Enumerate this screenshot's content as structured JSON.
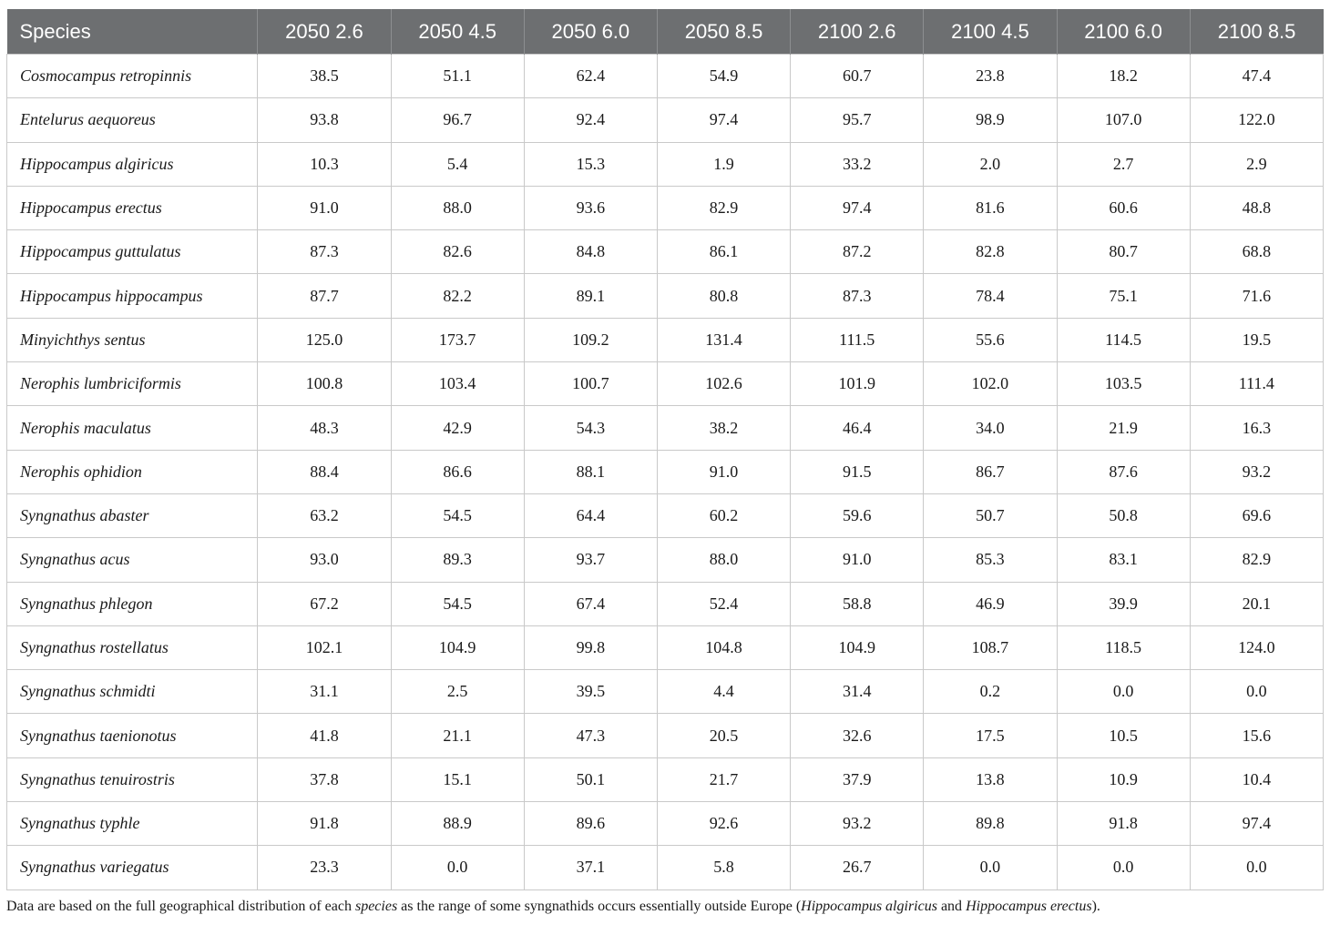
{
  "table": {
    "headers": [
      "Species",
      "2050 2.6",
      "2050 4.5",
      "2050 6.0",
      "2050 8.5",
      "2100 2.6",
      "2100 4.5",
      "2100 6.0",
      "2100 8.5"
    ],
    "rows": [
      {
        "species": "Cosmocampus retropinnis",
        "values": [
          "38.5",
          "51.1",
          "62.4",
          "54.9",
          "60.7",
          "23.8",
          "18.2",
          "47.4"
        ]
      },
      {
        "species": "Entelurus aequoreus",
        "values": [
          "93.8",
          "96.7",
          "92.4",
          "97.4",
          "95.7",
          "98.9",
          "107.0",
          "122.0"
        ]
      },
      {
        "species": "Hippocampus algiricus",
        "values": [
          "10.3",
          "5.4",
          "15.3",
          "1.9",
          "33.2",
          "2.0",
          "2.7",
          "2.9"
        ]
      },
      {
        "species": "Hippocampus erectus",
        "values": [
          "91.0",
          "88.0",
          "93.6",
          "82.9",
          "97.4",
          "81.6",
          "60.6",
          "48.8"
        ]
      },
      {
        "species": "Hippocampus guttulatus",
        "values": [
          "87.3",
          "82.6",
          "84.8",
          "86.1",
          "87.2",
          "82.8",
          "80.7",
          "68.8"
        ]
      },
      {
        "species": "Hippocampus hippocampus",
        "values": [
          "87.7",
          "82.2",
          "89.1",
          "80.8",
          "87.3",
          "78.4",
          "75.1",
          "71.6"
        ]
      },
      {
        "species": "Minyichthys sentus",
        "values": [
          "125.0",
          "173.7",
          "109.2",
          "131.4",
          "111.5",
          "55.6",
          "114.5",
          "19.5"
        ]
      },
      {
        "species": "Nerophis lumbriciformis",
        "values": [
          "100.8",
          "103.4",
          "100.7",
          "102.6",
          "101.9",
          "102.0",
          "103.5",
          "111.4"
        ]
      },
      {
        "species": "Nerophis maculatus",
        "values": [
          "48.3",
          "42.9",
          "54.3",
          "38.2",
          "46.4",
          "34.0",
          "21.9",
          "16.3"
        ]
      },
      {
        "species": "Nerophis ophidion",
        "values": [
          "88.4",
          "86.6",
          "88.1",
          "91.0",
          "91.5",
          "86.7",
          "87.6",
          "93.2"
        ]
      },
      {
        "species": "Syngnathus abaster",
        "values": [
          "63.2",
          "54.5",
          "64.4",
          "60.2",
          "59.6",
          "50.7",
          "50.8",
          "69.6"
        ]
      },
      {
        "species": "Syngnathus acus",
        "values": [
          "93.0",
          "89.3",
          "93.7",
          "88.0",
          "91.0",
          "85.3",
          "83.1",
          "82.9"
        ]
      },
      {
        "species": "Syngnathus phlegon",
        "values": [
          "67.2",
          "54.5",
          "67.4",
          "52.4",
          "58.8",
          "46.9",
          "39.9",
          "20.1"
        ]
      },
      {
        "species": "Syngnathus rostellatus",
        "values": [
          "102.1",
          "104.9",
          "99.8",
          "104.8",
          "104.9",
          "108.7",
          "118.5",
          "124.0"
        ]
      },
      {
        "species": "Syngnathus schmidti",
        "values": [
          "31.1",
          "2.5",
          "39.5",
          "4.4",
          "31.4",
          "0.2",
          "0.0",
          "0.0"
        ]
      },
      {
        "species": "Syngnathus taenionotus",
        "values": [
          "41.8",
          "21.1",
          "47.3",
          "20.5",
          "32.6",
          "17.5",
          "10.5",
          "15.6"
        ]
      },
      {
        "species": "Syngnathus tenuirostris",
        "values": [
          "37.8",
          "15.1",
          "50.1",
          "21.7",
          "37.9",
          "13.8",
          "10.9",
          "10.4"
        ]
      },
      {
        "species": "Syngnathus typhle",
        "values": [
          "91.8",
          "88.9",
          "89.6",
          "92.6",
          "93.2",
          "89.8",
          "91.8",
          "97.4"
        ]
      },
      {
        "species": "Syngnathus variegatus",
        "values": [
          "23.3",
          "0.0",
          "37.1",
          "5.8",
          "26.7",
          "0.0",
          "0.0",
          "0.0"
        ]
      }
    ]
  },
  "footnote": {
    "part1": "Data are based on the full geographical distribution of each ",
    "em1": "species",
    "part2": " as the range of some syngnathids occurs essentially outside Europe (",
    "em2": "Hippocampus algiricus",
    "part3": " and ",
    "em3": "Hippocampus erectus",
    "part4": ")."
  },
  "colors": {
    "header_bg": "#6d6f71",
    "header_text": "#ffffff",
    "grid": "#c9c9c9"
  }
}
